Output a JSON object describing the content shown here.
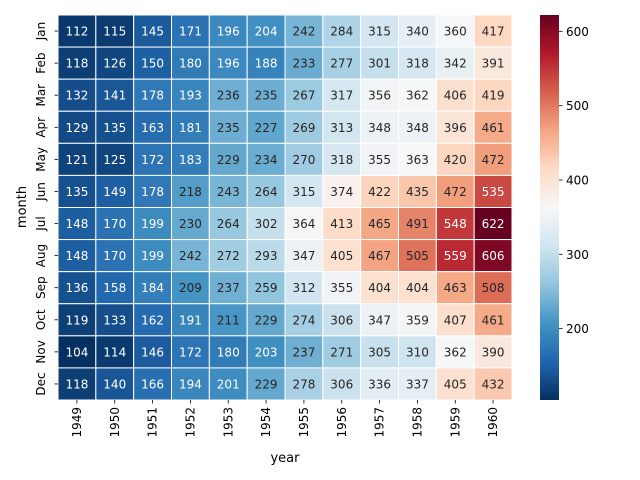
{
  "chart_data": {
    "type": "heatmap",
    "title": "",
    "xlabel": "year",
    "ylabel": "month",
    "x_categories": [
      "1949",
      "1950",
      "1951",
      "1952",
      "1953",
      "1954",
      "1955",
      "1956",
      "1957",
      "1958",
      "1959",
      "1960"
    ],
    "y_categories": [
      "Jan",
      "Feb",
      "Mar",
      "Apr",
      "May",
      "Jun",
      "Jul",
      "Aug",
      "Sep",
      "Oct",
      "Nov",
      "Dec"
    ],
    "values": [
      [
        112,
        115,
        145,
        171,
        196,
        204,
        242,
        284,
        315,
        340,
        360,
        417
      ],
      [
        118,
        126,
        150,
        180,
        196,
        188,
        233,
        277,
        301,
        318,
        342,
        391
      ],
      [
        132,
        141,
        178,
        193,
        236,
        235,
        267,
        317,
        356,
        362,
        406,
        419
      ],
      [
        129,
        135,
        163,
        181,
        235,
        227,
        269,
        313,
        348,
        348,
        396,
        461
      ],
      [
        121,
        125,
        172,
        183,
        229,
        234,
        270,
        318,
        355,
        363,
        420,
        472
      ],
      [
        135,
        149,
        178,
        218,
        243,
        264,
        315,
        374,
        422,
        435,
        472,
        535
      ],
      [
        148,
        170,
        199,
        230,
        264,
        302,
        364,
        413,
        465,
        491,
        548,
        622
      ],
      [
        148,
        170,
        199,
        242,
        272,
        293,
        347,
        405,
        467,
        505,
        559,
        606
      ],
      [
        136,
        158,
        184,
        209,
        237,
        259,
        312,
        355,
        404,
        404,
        463,
        508
      ],
      [
        119,
        133,
        162,
        191,
        211,
        229,
        274,
        306,
        347,
        359,
        407,
        461
      ],
      [
        104,
        114,
        146,
        172,
        180,
        203,
        237,
        271,
        305,
        310,
        362,
        390
      ],
      [
        118,
        140,
        166,
        194,
        201,
        229,
        278,
        306,
        336,
        337,
        405,
        432
      ]
    ],
    "colormap": "RdBu_r",
    "vmin": 104,
    "vmax": 622,
    "annotations": true,
    "cell_separator_color": "#ffffff",
    "colorbar": {
      "ticks": [
        200,
        300,
        400,
        500,
        600
      ]
    }
  }
}
